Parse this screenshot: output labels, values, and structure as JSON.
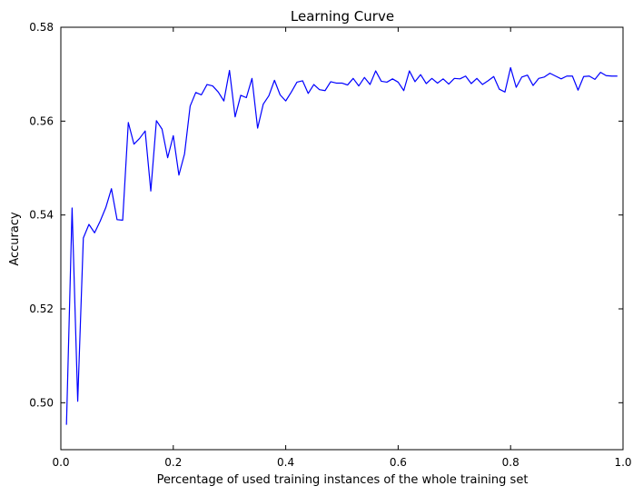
{
  "chart_data": {
    "type": "line",
    "title": "Learning Curve",
    "xlabel": "Percentage of used training instances of the whole training set",
    "ylabel": "Accuracy",
    "xlim": [
      0.0,
      1.0
    ],
    "ylim": [
      0.49,
      0.58
    ],
    "xticks": [
      0.0,
      0.2,
      0.4,
      0.6,
      0.8,
      1.0
    ],
    "xtick_labels": [
      "0.0",
      "0.2",
      "0.4",
      "0.6",
      "0.8",
      "1.0"
    ],
    "yticks": [
      0.5,
      0.52,
      0.54,
      0.56,
      0.58
    ],
    "ytick_labels": [
      "0.50",
      "0.52",
      "0.54",
      "0.56",
      "0.58"
    ],
    "grid": false,
    "legend": false,
    "line_color": "#0000ff",
    "series": [
      {
        "x": [
          0.01,
          0.02,
          0.03,
          0.04,
          0.05,
          0.06,
          0.07,
          0.08,
          0.09,
          0.1,
          0.11,
          0.12,
          0.13,
          0.14,
          0.15,
          0.16,
          0.17,
          0.18,
          0.19,
          0.2,
          0.21,
          0.22,
          0.23,
          0.24,
          0.25,
          0.26,
          0.27,
          0.28,
          0.29,
          0.3,
          0.31,
          0.32,
          0.33,
          0.34,
          0.35,
          0.36,
          0.37,
          0.38,
          0.39,
          0.4,
          0.41,
          0.42,
          0.43,
          0.44,
          0.45,
          0.46,
          0.47,
          0.48,
          0.49,
          0.5,
          0.51,
          0.52,
          0.53,
          0.54,
          0.55,
          0.56,
          0.57,
          0.58,
          0.59,
          0.6,
          0.61,
          0.62,
          0.63,
          0.64,
          0.65,
          0.66,
          0.67,
          0.68,
          0.69,
          0.7,
          0.71,
          0.72,
          0.73,
          0.74,
          0.75,
          0.76,
          0.77,
          0.78,
          0.79,
          0.8,
          0.81,
          0.82,
          0.83,
          0.84,
          0.85,
          0.86,
          0.87,
          0.88,
          0.89,
          0.9,
          0.91,
          0.92,
          0.93,
          0.94,
          0.95,
          0.96,
          0.97,
          0.98,
          0.99
        ],
        "values": [
          0.4953,
          0.5415,
          0.5003,
          0.5351,
          0.538,
          0.5362,
          0.5387,
          0.5416,
          0.5456,
          0.539,
          0.5389,
          0.5597,
          0.5551,
          0.5563,
          0.5579,
          0.5451,
          0.5601,
          0.5583,
          0.5522,
          0.5569,
          0.5485,
          0.553,
          0.5632,
          0.5661,
          0.5656,
          0.5678,
          0.5675,
          0.5662,
          0.5643,
          0.5708,
          0.5609,
          0.5655,
          0.565,
          0.5691,
          0.5585,
          0.5636,
          0.5654,
          0.5687,
          0.5656,
          0.5643,
          0.5662,
          0.5683,
          0.5686,
          0.5659,
          0.5678,
          0.5667,
          0.5665,
          0.5684,
          0.5681,
          0.5681,
          0.5677,
          0.5691,
          0.5675,
          0.5693,
          0.5678,
          0.5707,
          0.5685,
          0.5683,
          0.569,
          0.5683,
          0.5665,
          0.5707,
          0.5684,
          0.5699,
          0.568,
          0.5691,
          0.5681,
          0.569,
          0.5679,
          0.5691,
          0.569,
          0.5696,
          0.568,
          0.5691,
          0.5678,
          0.5686,
          0.5695,
          0.5668,
          0.5662,
          0.5714,
          0.5672,
          0.5694,
          0.5698,
          0.5676,
          0.5691,
          0.5694,
          0.5702,
          0.5696,
          0.569,
          0.5696,
          0.5696,
          0.5666,
          0.5695,
          0.5696,
          0.5689,
          0.5704,
          0.5697,
          0.5696,
          0.5696
        ]
      }
    ]
  }
}
